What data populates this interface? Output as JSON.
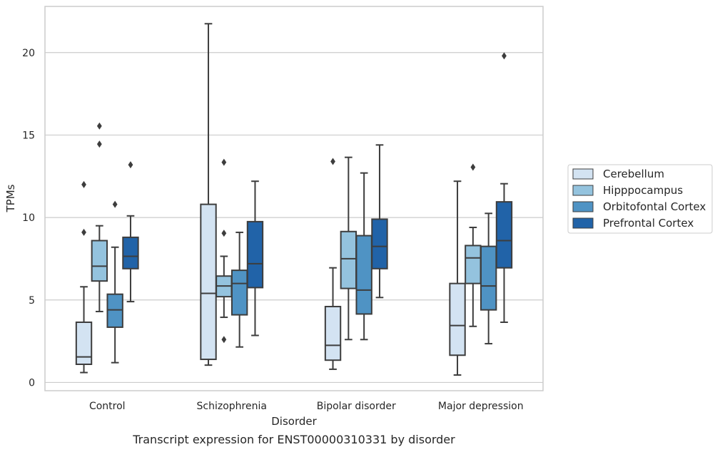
{
  "chart_data": {
    "type": "boxplot",
    "caption": "Transcript expression for ENST00000310331 by disorder",
    "xlabel": "Disorder",
    "ylabel": "TPMs",
    "ylim": [
      -0.5,
      22.8
    ],
    "yticks": [
      0,
      5,
      10,
      15,
      20
    ],
    "grid": "horizontal",
    "legend_position": "right",
    "categories": [
      "Control",
      "Schizophrenia",
      "Bipolar disorder",
      "Major depression"
    ],
    "series": [
      {
        "name": "Cerebellum",
        "color": "#d3e3f2",
        "boxes": [
          {
            "whisker_low": 0.6,
            "q1": 1.1,
            "median": 1.55,
            "q3": 3.65,
            "whisker_high": 5.8,
            "outliers": [
              9.1,
              12.0
            ]
          },
          {
            "whisker_low": 1.05,
            "q1": 1.4,
            "median": 5.4,
            "q3": 10.8,
            "whisker_high": 21.75,
            "outliers": []
          },
          {
            "whisker_low": 0.8,
            "q1": 1.35,
            "median": 2.25,
            "q3": 4.6,
            "whisker_high": 6.95,
            "outliers": [
              13.4
            ]
          },
          {
            "whisker_low": 0.45,
            "q1": 1.65,
            "median": 3.45,
            "q3": 6.0,
            "whisker_high": 12.2,
            "outliers": []
          }
        ]
      },
      {
        "name": "Hipppocampus",
        "color": "#94c3de",
        "boxes": [
          {
            "whisker_low": 4.3,
            "q1": 6.15,
            "median": 7.05,
            "q3": 8.6,
            "whisker_high": 9.5,
            "outliers": [
              14.45,
              15.55
            ]
          },
          {
            "whisker_low": 3.95,
            "q1": 5.2,
            "median": 5.85,
            "q3": 6.45,
            "whisker_high": 7.65,
            "outliers": [
              2.6,
              9.05,
              13.35
            ]
          },
          {
            "whisker_low": 2.6,
            "q1": 5.7,
            "median": 7.5,
            "q3": 9.15,
            "whisker_high": 13.65,
            "outliers": []
          },
          {
            "whisker_low": 3.4,
            "q1": 6.0,
            "median": 7.55,
            "q3": 8.3,
            "whisker_high": 9.4,
            "outliers": [
              13.05
            ]
          }
        ]
      },
      {
        "name": "Orbitofontal Cortex",
        "color": "#4f93c4",
        "boxes": [
          {
            "whisker_low": 1.2,
            "q1": 3.35,
            "median": 4.4,
            "q3": 5.35,
            "whisker_high": 8.2,
            "outliers": [
              10.8
            ]
          },
          {
            "whisker_low": 2.15,
            "q1": 4.1,
            "median": 6.0,
            "q3": 6.8,
            "whisker_high": 9.1,
            "outliers": []
          },
          {
            "whisker_low": 2.6,
            "q1": 4.15,
            "median": 5.6,
            "q3": 8.9,
            "whisker_high": 12.7,
            "outliers": []
          },
          {
            "whisker_low": 2.35,
            "q1": 4.4,
            "median": 5.85,
            "q3": 8.25,
            "whisker_high": 10.25,
            "outliers": []
          }
        ]
      },
      {
        "name": "Prefrontal Cortex",
        "color": "#2163a8",
        "boxes": [
          {
            "whisker_low": 4.9,
            "q1": 6.9,
            "median": 7.65,
            "q3": 8.8,
            "whisker_high": 10.1,
            "outliers": [
              13.2
            ]
          },
          {
            "whisker_low": 2.85,
            "q1": 5.75,
            "median": 7.2,
            "q3": 9.75,
            "whisker_high": 12.2,
            "outliers": []
          },
          {
            "whisker_low": 5.15,
            "q1": 6.9,
            "median": 8.25,
            "q3": 9.9,
            "whisker_high": 14.4,
            "outliers": []
          },
          {
            "whisker_low": 3.65,
            "q1": 6.95,
            "median": 8.6,
            "q3": 10.95,
            "whisker_high": 12.05,
            "outliers": [
              19.8
            ]
          }
        ]
      }
    ]
  }
}
